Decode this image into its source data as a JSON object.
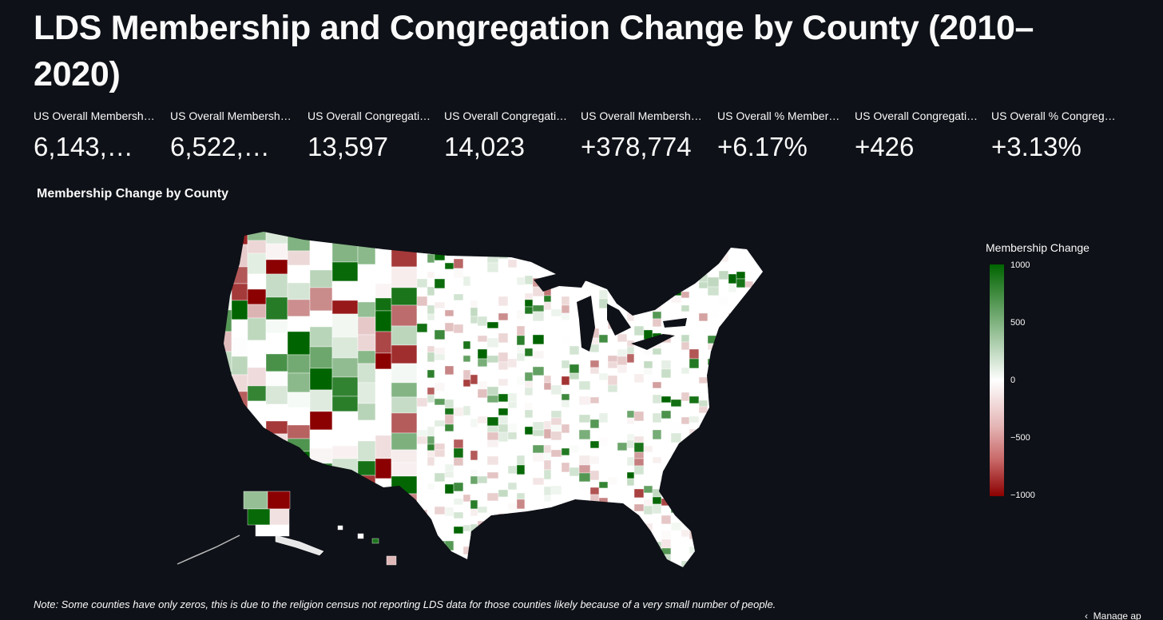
{
  "title": "LDS Membership and Congregation Change by County (2010–2020)",
  "metrics": [
    {
      "label": "US Overall Membersh…",
      "value": "6,143,…"
    },
    {
      "label": "US Overall Membersh…",
      "value": "6,522,…"
    },
    {
      "label": "US Overall Congregati…",
      "value": "13,597"
    },
    {
      "label": "US Overall Congregati…",
      "value": "14,023"
    },
    {
      "label": "US Overall Membersh…",
      "value": "+378,774"
    },
    {
      "label": "US Overall % Member…",
      "value": "+6.17%"
    },
    {
      "label": "US Overall Congregati…",
      "value": "+426"
    },
    {
      "label": "US Overall % Congreg…",
      "value": "+3.13%"
    }
  ],
  "chart": {
    "title": "Membership Change by County",
    "legend_title": "Membership Change",
    "ticks": [
      "1000",
      "500",
      "0",
      "−500",
      "−1000"
    ]
  },
  "chart_data": {
    "type": "choropleth",
    "title": "Membership Change by County",
    "colorbar_title": "Membership Change",
    "color_range": [
      -1000,
      1000
    ],
    "colorscale": [
      "#8b0000",
      "#ffffff",
      "#006400"
    ],
    "tick_values": [
      1000,
      500,
      0,
      -500,
      -1000
    ]
  },
  "note": "Note: Some counties have only zeros, this is due to the religion census not reporting LDS data for those counties likely because of a very small number of people.",
  "footer": {
    "manage_label": "Manage ap"
  },
  "colors": {
    "background": "#0e1117",
    "text": "#fafafa",
    "positive": "#006400",
    "negative": "#8b0000"
  }
}
